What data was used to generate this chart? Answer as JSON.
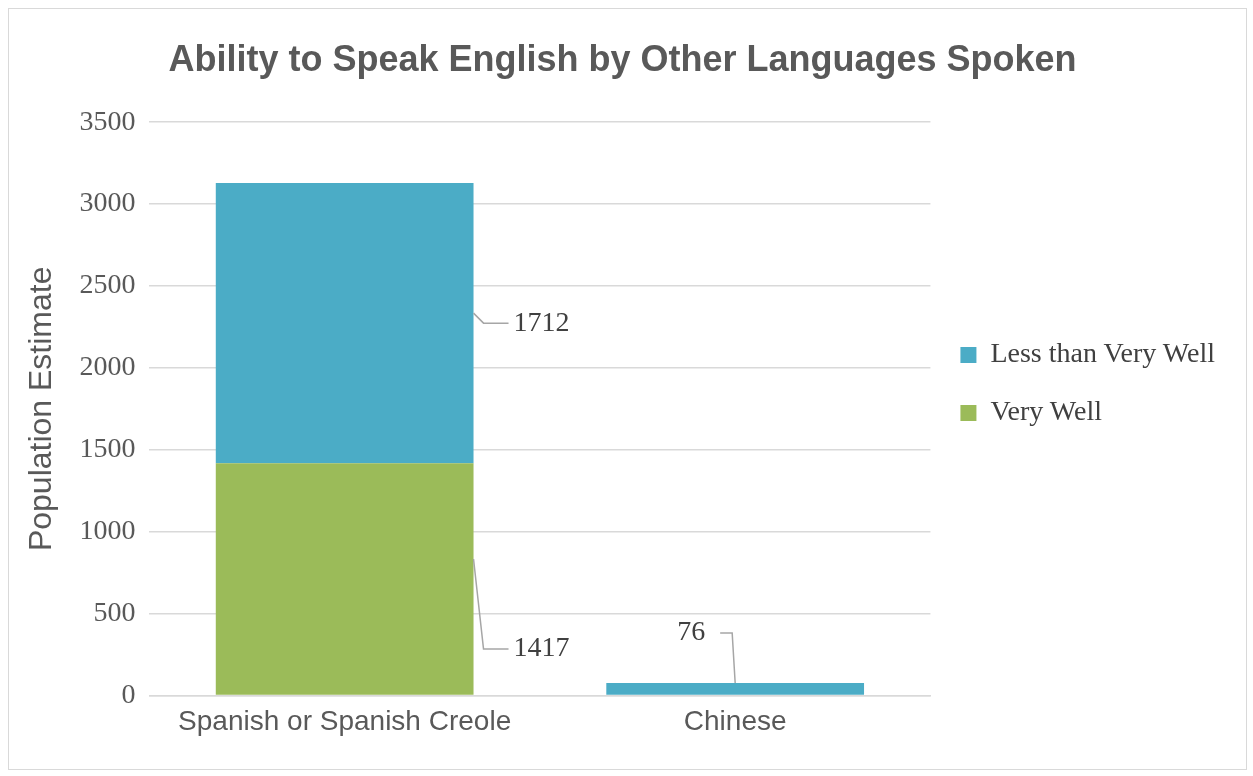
{
  "chart_data": {
    "type": "bar",
    "title": "Ability to Speak English by Other Languages Spoken",
    "ylabel": "Population Estimate",
    "categories": [
      "Spanish or Spanish Creole",
      "Chinese"
    ],
    "series": [
      {
        "name": "Very Well",
        "color": "#9bbb59",
        "values": [
          1417,
          null
        ]
      },
      {
        "name": "Less than Very Well",
        "color": "#4bacc6",
        "values": [
          1712,
          76
        ]
      }
    ],
    "stacked": true,
    "ylim": [
      0,
      3500
    ],
    "yticks": [
      0,
      500,
      1000,
      1500,
      2000,
      2500,
      3000,
      3500
    ],
    "grid": "y",
    "legend": "right",
    "data_labels": true
  }
}
